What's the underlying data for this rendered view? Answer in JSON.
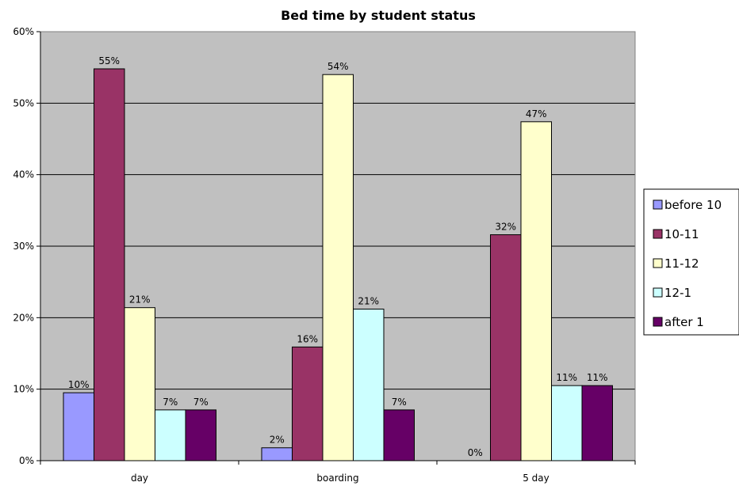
{
  "chart_data": {
    "type": "bar",
    "title": "Bed time by student status",
    "xlabel": "",
    "ylabel": "",
    "categories": [
      "day",
      "boarding",
      "5 day"
    ],
    "ylim": [
      0,
      60
    ],
    "y_ticks": [
      "0%",
      "10%",
      "20%",
      "30%",
      "40%",
      "50%",
      "60%"
    ],
    "grid": true,
    "legend_position": "right",
    "plot_background": "#c0c0c0",
    "series": [
      {
        "name": "before 10",
        "color": "#9999ff",
        "values": [
          9.5,
          1.8,
          0
        ],
        "labels": [
          "10%",
          "2%",
          "0%"
        ]
      },
      {
        "name": "10-11",
        "color": "#993366",
        "values": [
          54.8,
          15.9,
          31.6
        ],
        "labels": [
          "55%",
          "16%",
          "32%"
        ]
      },
      {
        "name": "11-12",
        "color": "#ffffcc",
        "values": [
          21.4,
          54.0,
          47.4
        ],
        "labels": [
          "21%",
          "54%",
          "47%"
        ]
      },
      {
        "name": "12-1",
        "color": "#ccffff",
        "values": [
          7.1,
          21.2,
          10.5
        ],
        "labels": [
          "7%",
          "21%",
          "11%"
        ]
      },
      {
        "name": "after 1",
        "color": "#660066",
        "values": [
          7.1,
          7.1,
          10.5
        ],
        "labels": [
          "7%",
          "7%",
          "11%"
        ]
      }
    ]
  }
}
